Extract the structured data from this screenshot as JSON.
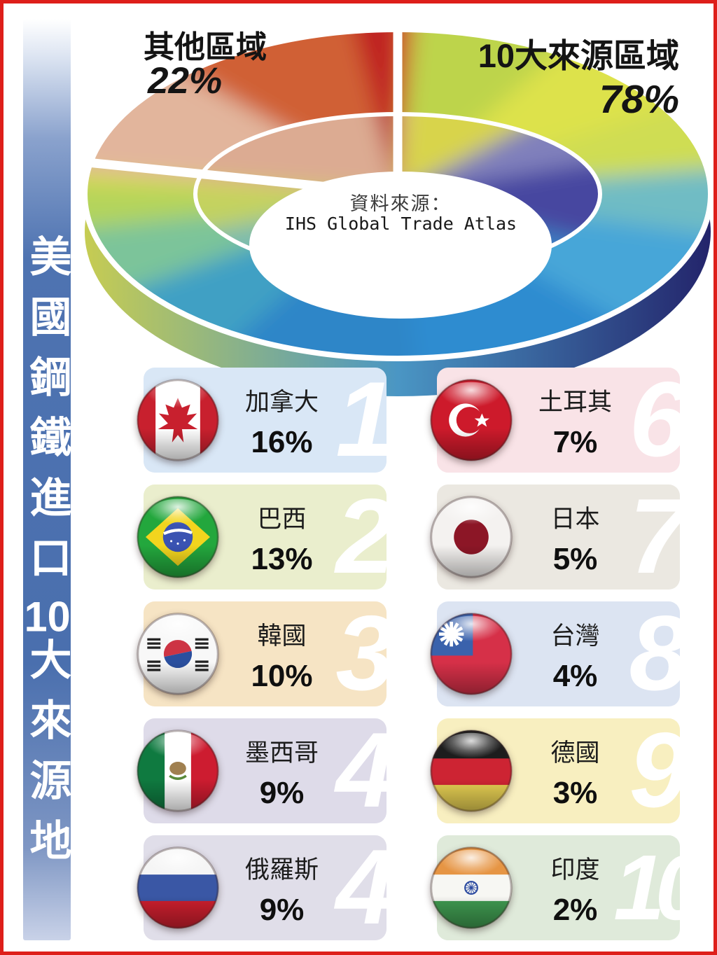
{
  "page": {
    "frame_color": "#de1f1a",
    "accent_blue": "#4a6fae",
    "background": "#ffffff"
  },
  "sidebar": {
    "title_part1": "美國鋼鐵進口",
    "title_num": "10",
    "title_part2": "大來源地"
  },
  "donut": {
    "other_label": "其他區域",
    "other_pct": "22%",
    "top10_label": "10大來源區域",
    "top10_pct": "78%",
    "source_label": "資料來源：",
    "source_name": "IHS Global Trade Atlas"
  },
  "chart_data": {
    "type": "pie",
    "style": "3d-donut",
    "title": "美國鋼鐵進口10大來源地",
    "center_note": "資料來源：IHS Global Trade Atlas",
    "slices": [
      {
        "label": "10大來源區域",
        "value": 78
      },
      {
        "label": "其他區域",
        "value": 22
      }
    ],
    "ranking": [
      {
        "rank": "1",
        "name": "加拿大",
        "pct": "16%",
        "flag": "canada",
        "bg": "#d9e7f6"
      },
      {
        "rank": "2",
        "name": "巴西",
        "pct": "13%",
        "flag": "brazil",
        "bg": "#eaeecd"
      },
      {
        "rank": "3",
        "name": "韓國",
        "pct": "10%",
        "flag": "korea",
        "bg": "#f6e4c4"
      },
      {
        "rank": "4",
        "name": "墨西哥",
        "pct": "9%",
        "flag": "mexico",
        "bg": "#dedbe9"
      },
      {
        "rank": "4",
        "name": "俄羅斯",
        "pct": "9%",
        "flag": "russia",
        "bg": "#e0dee9"
      },
      {
        "rank": "6",
        "name": "土耳其",
        "pct": "7%",
        "flag": "turkey",
        "bg": "#f9e3e7"
      },
      {
        "rank": "7",
        "name": "日本",
        "pct": "5%",
        "flag": "japan",
        "bg": "#ebe8e1"
      },
      {
        "rank": "8",
        "name": "台灣",
        "pct": "4%",
        "flag": "taiwan",
        "bg": "#dce4f2"
      },
      {
        "rank": "9",
        "name": "德國",
        "pct": "3%",
        "flag": "germany",
        "bg": "#f8efc0"
      },
      {
        "rank": "10",
        "name": "印度",
        "pct": "2%",
        "flag": "india",
        "bg": "#dfeada"
      }
    ]
  }
}
